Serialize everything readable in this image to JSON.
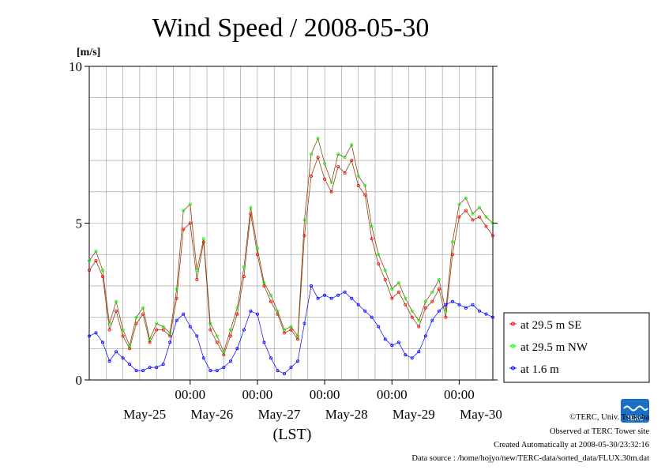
{
  "title": "Wind Speed / 2008-05-30",
  "unit_label": "[m/s]",
  "xlabel": "(LST)",
  "colors": {
    "se": "#ff0000",
    "nw": "#00ff00",
    "low": "#0000ff",
    "line": "#8b4513",
    "grid": "#999999"
  },
  "chart_data": {
    "type": "line",
    "title": "Wind Speed / 2008-05-30",
    "xlabel": "(LST)",
    "ylabel": "[m/s]",
    "ylim": [
      0,
      10
    ],
    "yticks": [
      "0",
      "5",
      "10"
    ],
    "xlim": [
      -0.5,
      5.5
    ],
    "xticks": [
      "00:00",
      "00:00",
      "00:00",
      "00:00",
      "00:00"
    ],
    "day_labels": [
      "May-25",
      "May-26",
      "May-27",
      "May-28",
      "May-29",
      "May-30"
    ],
    "grid": true,
    "legend_position": "right",
    "x_unit": "days from 2008-05-25 00:00 LST",
    "series": [
      {
        "name": "at 29.5 m SE",
        "color": "#ff0000",
        "x": [
          -0.5,
          -0.4,
          -0.3,
          -0.2,
          -0.1,
          0,
          0.1,
          0.2,
          0.3,
          0.4,
          0.5,
          0.6,
          0.7,
          0.8,
          0.9,
          1,
          1.1,
          1.2,
          1.3,
          1.4,
          1.5,
          1.6,
          1.7,
          1.8,
          1.9,
          2,
          2.1,
          2.2,
          2.3,
          2.4,
          2.5,
          2.6,
          2.7,
          2.8,
          2.9,
          3,
          3.1,
          3.2,
          3.3,
          3.4,
          3.5,
          3.6,
          3.7,
          3.8,
          3.9,
          4,
          4.1,
          4.2,
          4.3,
          4.4,
          4.5,
          4.6,
          4.7,
          4.8,
          4.9,
          5,
          5.1,
          5.2,
          5.3,
          5.4,
          5.5
        ],
        "y": [
          3.5,
          3.8,
          3.3,
          1.6,
          2.2,
          1.4,
          1.0,
          1.8,
          2.1,
          1.2,
          1.6,
          1.6,
          1.4,
          2.6,
          4.8,
          5.0,
          3.2,
          4.4,
          1.6,
          1.2,
          0.8,
          1.4,
          2.1,
          3.3,
          5.3,
          4.0,
          3.0,
          2.5,
          2.1,
          1.5,
          1.6,
          1.3,
          4.6,
          6.5,
          7.1,
          6.4,
          6.0,
          6.8,
          6.6,
          7.0,
          6.2,
          5.9,
          4.5,
          3.7,
          3.2,
          2.6,
          2.8,
          2.4,
          2.0,
          1.7,
          2.3,
          2.5,
          2.9,
          2.0,
          4.0,
          5.2,
          5.4,
          5.1,
          5.2,
          4.9,
          4.6
        ]
      },
      {
        "name": "at 29.5 m NW",
        "color": "#00ff00",
        "x": [
          -0.5,
          -0.4,
          -0.3,
          -0.2,
          -0.1,
          0,
          0.1,
          0.2,
          0.3,
          0.4,
          0.5,
          0.6,
          0.7,
          0.8,
          0.9,
          1,
          1.1,
          1.2,
          1.3,
          1.4,
          1.5,
          1.6,
          1.7,
          1.8,
          1.9,
          2,
          2.1,
          2.2,
          2.3,
          2.4,
          2.5,
          2.6,
          2.7,
          2.8,
          2.9,
          3,
          3.1,
          3.2,
          3.3,
          3.4,
          3.5,
          3.6,
          3.7,
          3.8,
          3.9,
          4,
          4.1,
          4.2,
          4.3,
          4.4,
          4.5,
          4.6,
          4.7,
          4.8,
          4.9,
          5,
          5.1,
          5.2,
          5.3,
          5.4,
          5.5
        ],
        "y": [
          3.8,
          4.1,
          3.5,
          1.8,
          2.5,
          1.6,
          1.1,
          2.0,
          2.3,
          1.3,
          1.8,
          1.7,
          1.5,
          2.9,
          5.4,
          5.6,
          3.5,
          4.5,
          1.8,
          1.4,
          0.9,
          1.6,
          2.3,
          3.6,
          5.5,
          4.2,
          3.1,
          2.7,
          2.2,
          1.6,
          1.7,
          1.4,
          5.1,
          7.2,
          7.7,
          6.9,
          6.3,
          7.2,
          7.1,
          7.5,
          6.5,
          6.2,
          4.9,
          4.0,
          3.5,
          2.9,
          3.1,
          2.6,
          2.2,
          1.9,
          2.5,
          2.8,
          3.2,
          2.2,
          4.4,
          5.6,
          5.8,
          5.3,
          5.5,
          5.2,
          5.0
        ]
      },
      {
        "name": "at 1.6 m",
        "color": "#0000ff",
        "x": [
          -0.5,
          -0.4,
          -0.3,
          -0.2,
          -0.1,
          0,
          0.1,
          0.2,
          0.3,
          0.4,
          0.5,
          0.6,
          0.7,
          0.8,
          0.9,
          1,
          1.1,
          1.2,
          1.3,
          1.4,
          1.5,
          1.6,
          1.7,
          1.8,
          1.9,
          2,
          2.1,
          2.2,
          2.3,
          2.4,
          2.5,
          2.6,
          2.7,
          2.8,
          2.9,
          3,
          3.1,
          3.2,
          3.3,
          3.4,
          3.5,
          3.6,
          3.7,
          3.8,
          3.9,
          4,
          4.1,
          4.2,
          4.3,
          4.4,
          4.5,
          4.6,
          4.7,
          4.8,
          4.9,
          5,
          5.1,
          5.2,
          5.3,
          5.4,
          5.5
        ],
        "y": [
          1.4,
          1.5,
          1.2,
          0.6,
          0.9,
          0.7,
          0.5,
          0.3,
          0.3,
          0.4,
          0.4,
          0.5,
          1.2,
          1.9,
          2.1,
          1.7,
          1.4,
          0.7,
          0.3,
          0.3,
          0.4,
          0.6,
          1.0,
          1.6,
          2.2,
          2.1,
          1.2,
          0.7,
          0.3,
          0.2,
          0.4,
          0.6,
          1.8,
          3.0,
          2.6,
          2.7,
          2.6,
          2.7,
          2.8,
          2.6,
          2.4,
          2.2,
          2.0,
          1.7,
          1.3,
          1.1,
          1.2,
          0.8,
          0.7,
          0.9,
          1.4,
          1.9,
          2.2,
          2.4,
          2.5,
          2.4,
          2.3,
          2.4,
          2.2,
          2.1,
          2.0
        ]
      }
    ]
  },
  "legend": {
    "items": [
      {
        "label": "at 29.5 m SE",
        "color": "#ff0000"
      },
      {
        "label": "at 29.5 m NW",
        "color": "#00ff00"
      },
      {
        "label": "at 1.6 m",
        "color": "#0000ff"
      }
    ]
  },
  "footer": {
    "copyright": "©TERC, Univ. Tsukuba",
    "observed": "Observed at TERC Tower site",
    "created": "Created Automatically at 2008-05-30/23:32:16",
    "source": "Data source : /home/hojyo/new/TERC-data/sorted_data/FLUX.30m.dat"
  },
  "logo": {
    "text": "TERC",
    "color": "#1a6fc4"
  }
}
